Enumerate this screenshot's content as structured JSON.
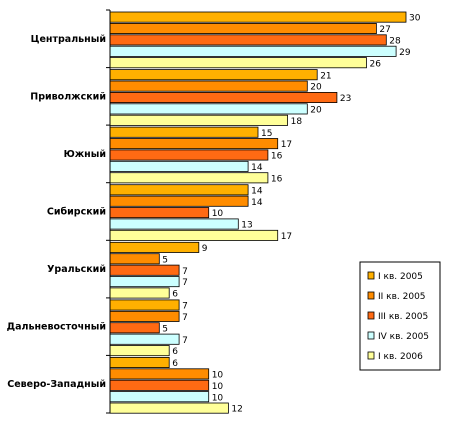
{
  "chart_data": {
    "type": "bar",
    "orientation": "horizontal",
    "categories": [
      "Центральный",
      "Приволжский",
      "Южный",
      "Сибирский",
      "Уральский",
      "Дальневосточный",
      "Северо-Западный"
    ],
    "series": [
      {
        "name": "I кв. 2005",
        "color": "#FFB000",
        "values": [
          30,
          21,
          15,
          14,
          9,
          7,
          6
        ]
      },
      {
        "name": "II кв. 2005",
        "color": "#FF8C00",
        "values": [
          27,
          20,
          17,
          14,
          5,
          7,
          10
        ]
      },
      {
        "name": "III кв. 2005",
        "color": "#FF6A13",
        "values": [
          28,
          23,
          16,
          10,
          7,
          5,
          10
        ]
      },
      {
        "name": "IV кв. 2005",
        "color": "#CCFFFF",
        "values": [
          29,
          20,
          14,
          13,
          7,
          7,
          10
        ]
      },
      {
        "name": "I кв. 2006",
        "color": "#FFFF99",
        "values": [
          26,
          18,
          16,
          17,
          6,
          6,
          12
        ]
      }
    ],
    "xlim": [
      0,
      30
    ],
    "grid": false,
    "legend_position": "right",
    "data_labels": true
  }
}
